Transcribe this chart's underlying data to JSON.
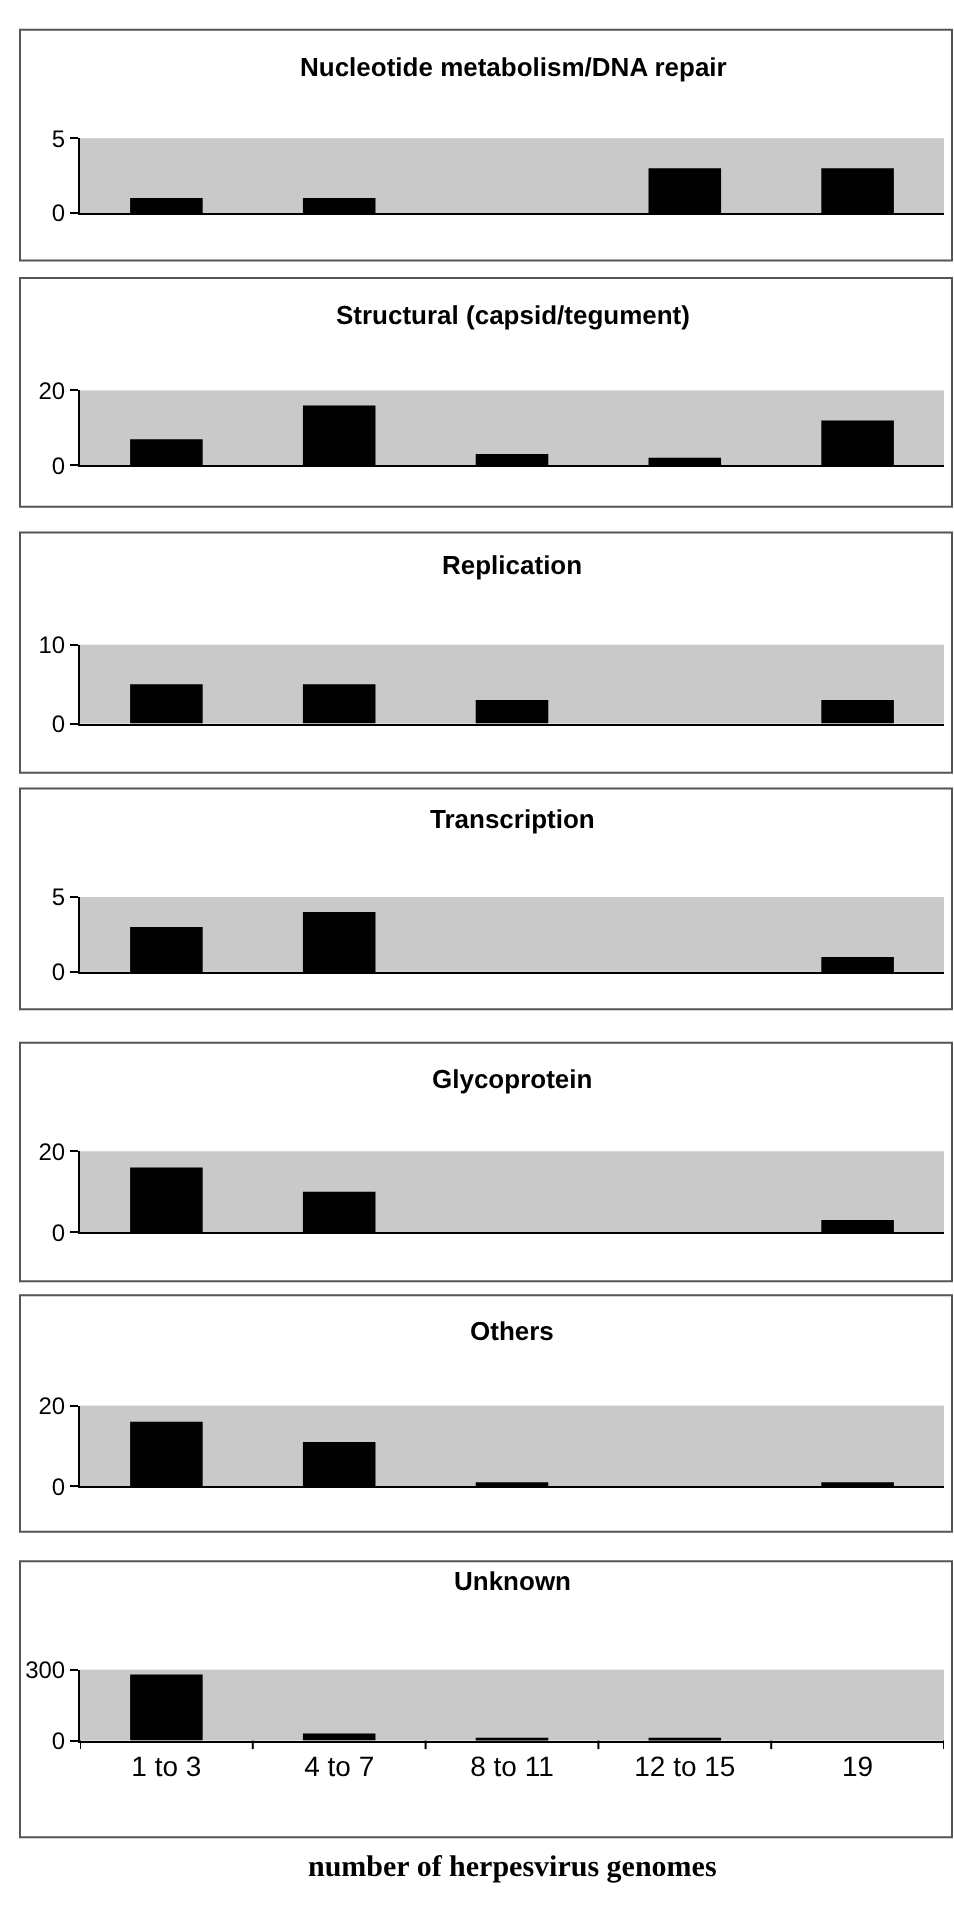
{
  "chart_data": [
    {
      "type": "bar",
      "title": "Nucleotide metabolism/DNA repair",
      "categories": [
        null,
        null,
        null,
        null,
        null
      ],
      "values": [
        1,
        1,
        0,
        3,
        3
      ],
      "color": "#000000",
      "ylim": [
        0,
        5
      ],
      "yticks": [
        0,
        5
      ]
    },
    {
      "type": "bar",
      "title": "Structural (capsid/tegument)",
      "categories": [
        null,
        null,
        null,
        null,
        null
      ],
      "values": [
        7,
        16,
        3,
        2,
        12
      ],
      "color": "#000000",
      "ylim": [
        0,
        20
      ],
      "yticks": [
        0,
        20
      ]
    },
    {
      "type": "bar",
      "title": "Replication",
      "categories": [
        null,
        null,
        null,
        null,
        null
      ],
      "values": [
        5,
        5,
        3,
        0,
        3
      ],
      "color": "#000000",
      "ylim": [
        0,
        10
      ],
      "yticks": [
        0,
        10
      ]
    },
    {
      "type": "bar",
      "title": "Transcription",
      "categories": [
        null,
        null,
        null,
        null,
        null
      ],
      "values": [
        3,
        4,
        0,
        0,
        1
      ],
      "color": "#000000",
      "ylim": [
        0,
        5
      ],
      "yticks": [
        0,
        5
      ]
    },
    {
      "type": "bar",
      "title": "Glycoprotein",
      "categories": [
        null,
        null,
        null,
        null,
        null
      ],
      "values": [
        16,
        10,
        0,
        0,
        3
      ],
      "color": "#000000",
      "ylim": [
        0,
        20
      ],
      "yticks": [
        0,
        20
      ]
    },
    {
      "type": "bar",
      "title": "Others",
      "categories": [
        null,
        null,
        null,
        null,
        null
      ],
      "values": [
        16,
        11,
        1,
        0,
        1
      ],
      "color": "#000000",
      "ylim": [
        0,
        20
      ],
      "yticks": [
        0,
        20
      ]
    },
    {
      "type": "bar",
      "title": "Unknown",
      "categories": [
        "1 to 3",
        "4 to 7",
        "8 to 11",
        "12 to 15",
        "19"
      ],
      "values": [
        280,
        30,
        10,
        10,
        0
      ],
      "color": "#000000",
      "ylim": [
        0,
        300
      ],
      "yticks": [
        0,
        300
      ],
      "xlabel": "number of herpesvirus genomes"
    }
  ]
}
